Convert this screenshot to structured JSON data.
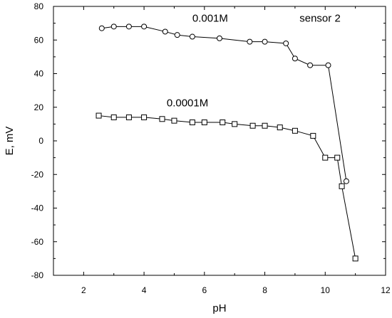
{
  "chart_data": {
    "type": "line",
    "xlabel": "pH",
    "ylabel": "E, mV",
    "xlim": [
      1,
      12
    ],
    "ylim": [
      -80,
      80
    ],
    "x_ticks": [
      "2",
      "4",
      "6",
      "8",
      "10",
      "12"
    ],
    "y_ticks": [
      "80",
      "60",
      "40",
      "20",
      "0",
      "-20",
      "-40",
      "-60",
      "-80"
    ],
    "grid": false,
    "annotations": [
      {
        "text": "0.001M",
        "x": 5.6,
        "y": 71
      },
      {
        "text": "sensor 2",
        "x": 9.15,
        "y": 71
      },
      {
        "text": "0.0001M",
        "x": 4.75,
        "y": 20.5
      }
    ],
    "series": [
      {
        "marker": "circle",
        "color": "#000000",
        "points": [
          [
            2.6,
            67
          ],
          [
            3.0,
            68
          ],
          [
            3.5,
            68
          ],
          [
            4.0,
            68
          ],
          [
            4.7,
            65
          ],
          [
            5.1,
            63
          ],
          [
            5.6,
            62
          ],
          [
            6.5,
            61
          ],
          [
            7.5,
            59
          ],
          [
            8.0,
            59
          ],
          [
            8.7,
            58
          ],
          [
            9.0,
            49
          ],
          [
            9.5,
            45
          ],
          [
            10.1,
            45
          ],
          [
            10.7,
            -24
          ]
        ]
      },
      {
        "marker": "square",
        "color": "#000000",
        "points": [
          [
            2.5,
            15
          ],
          [
            3.0,
            14
          ],
          [
            3.5,
            14
          ],
          [
            4.0,
            14
          ],
          [
            4.6,
            13
          ],
          [
            5.0,
            12
          ],
          [
            5.6,
            11
          ],
          [
            6.0,
            11
          ],
          [
            6.6,
            11
          ],
          [
            7.0,
            10
          ],
          [
            7.6,
            9
          ],
          [
            8.0,
            9
          ],
          [
            8.5,
            8
          ],
          [
            9.0,
            6
          ],
          [
            9.6,
            3
          ],
          [
            10.0,
            -10
          ],
          [
            10.4,
            -10
          ],
          [
            10.55,
            -27
          ],
          [
            11.0,
            -70
          ]
        ]
      }
    ]
  }
}
